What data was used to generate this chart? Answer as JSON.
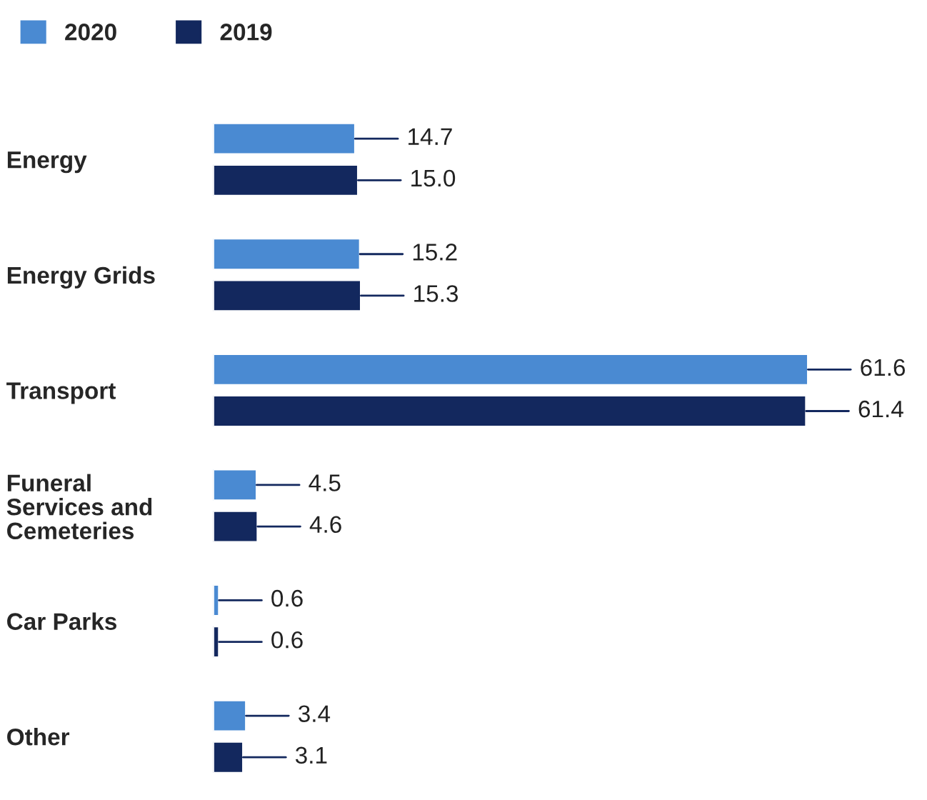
{
  "chart_data": {
    "type": "bar",
    "orientation": "horizontal",
    "categories": [
      "Energy",
      "Energy Grids",
      "Transport",
      "Funeral\nServices and\nCemeteries",
      "Car Parks",
      "Other"
    ],
    "series": [
      {
        "name": "2020",
        "color": "#4a8ad2",
        "values": [
          14.7,
          15.2,
          61.6,
          4.5,
          0.6,
          3.4
        ],
        "value_labels": [
          "14.7",
          "15.2",
          "61.6",
          "4.5",
          "0.6",
          "3.4"
        ]
      },
      {
        "name": "2019",
        "color": "#13285e",
        "values": [
          15.0,
          15.3,
          61.4,
          4.6,
          0.6,
          3.1
        ],
        "value_labels": [
          "15.0",
          "15.3",
          "61.4",
          "4.6",
          "0.6",
          "3.1"
        ]
      }
    ],
    "legend": "top left",
    "tick_labels": "y",
    "grid": false
  }
}
